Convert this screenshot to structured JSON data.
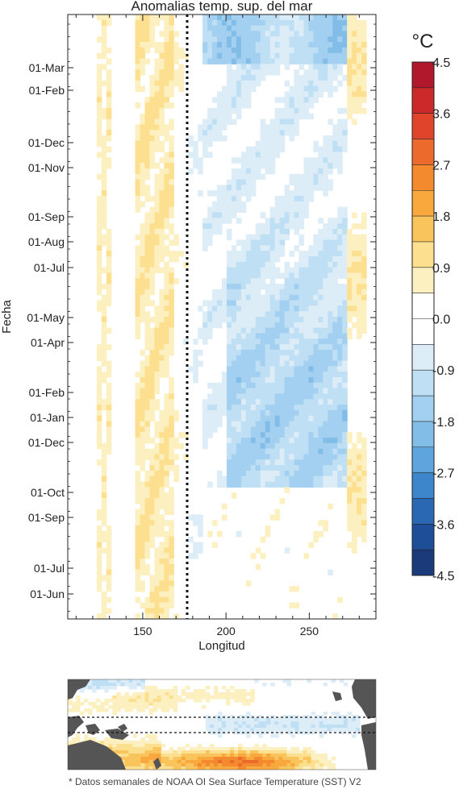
{
  "chart_data": {
    "type": "heatmap",
    "title": "Anomalias temp. sup. del mar",
    "xlabel": "Longitud",
    "ylabel": "Fecha",
    "x_ticks": [
      150,
      200,
      250
    ],
    "xlim": [
      105,
      290
    ],
    "y_tick_labels": [
      "01-Mar",
      "01-Feb",
      "01-Dec",
      "01-Nov",
      "01-Sep",
      "01-Aug",
      "01-Jul",
      "01-May",
      "01-Apr",
      "01-Feb",
      "01-Jan",
      "01-Dec",
      "01-Oct",
      "01-Sep",
      "01-Jul",
      "01-Jun"
    ],
    "reference_longitude": 180,
    "colorbar": {
      "unit": "°C",
      "tick_labels": [
        "4.5",
        "3.6",
        "2.7",
        "1.8",
        "0.9",
        "0.0",
        "-0.9",
        "-1.8",
        "-2.7",
        "-3.6",
        "-4.5"
      ],
      "levels": [
        4.5,
        4.05,
        3.6,
        3.15,
        2.7,
        2.25,
        1.8,
        1.35,
        0.9,
        0.45,
        0.0,
        -0.45,
        -0.9,
        -1.35,
        -1.8,
        -2.25,
        -2.7,
        -3.15,
        -3.6,
        -4.05,
        -4.5
      ],
      "colors": [
        "#b2182b",
        "#cc2a2a",
        "#e0452c",
        "#ec6a2c",
        "#f48a2e",
        "#f8a83c",
        "#fac45c",
        "#fce090",
        "#fdf0c0",
        "#ffffff",
        "#ffffff",
        "#dcedf8",
        "#bfdff4",
        "#a3d0f0",
        "#82bde8",
        "#5fa4dc",
        "#3e86cc",
        "#2a68b4",
        "#1f4e98",
        "#1a3a7a"
      ]
    },
    "map_inset": {
      "land_color": "#555555"
    }
  },
  "footnote": "* Datos semanales de NOAA OI Sea Surface Temperature (SST) V2"
}
